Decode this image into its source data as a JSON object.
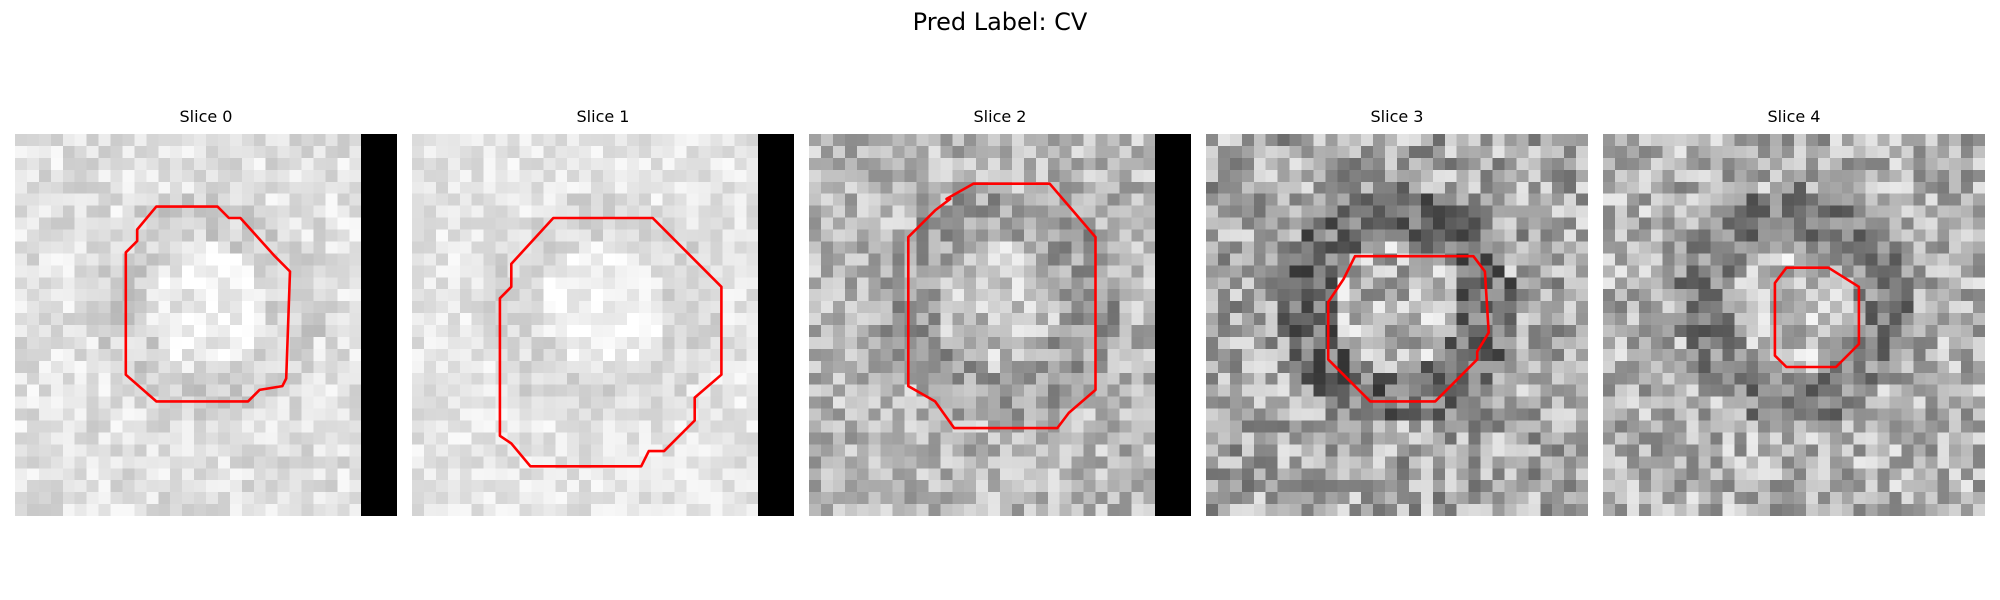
{
  "figure": {
    "title": "Pred Label: CV"
  },
  "panels": [
    {
      "title": "Slice 0",
      "pad": 0.12,
      "seed": 11,
      "base": 0.88,
      "contrast": 0.1,
      "ring": 0.06
    },
    {
      "title": "Slice 1",
      "pad": 0.12,
      "seed": 23,
      "base": 0.9,
      "contrast": 0.08,
      "ring": 0.05
    },
    {
      "title": "Slice 2",
      "pad": 0.12,
      "seed": 37,
      "base": 0.72,
      "contrast": 0.18,
      "ring": 0.1
    },
    {
      "title": "Slice 3",
      "pad": 0.0,
      "seed": 41,
      "base": 0.66,
      "contrast": 0.24,
      "ring": 0.22
    },
    {
      "title": "Slice 4",
      "pad": 0.0,
      "seed": 59,
      "base": 0.7,
      "contrast": 0.22,
      "ring": 0.18
    }
  ],
  "contour_color": "#ff0000"
}
